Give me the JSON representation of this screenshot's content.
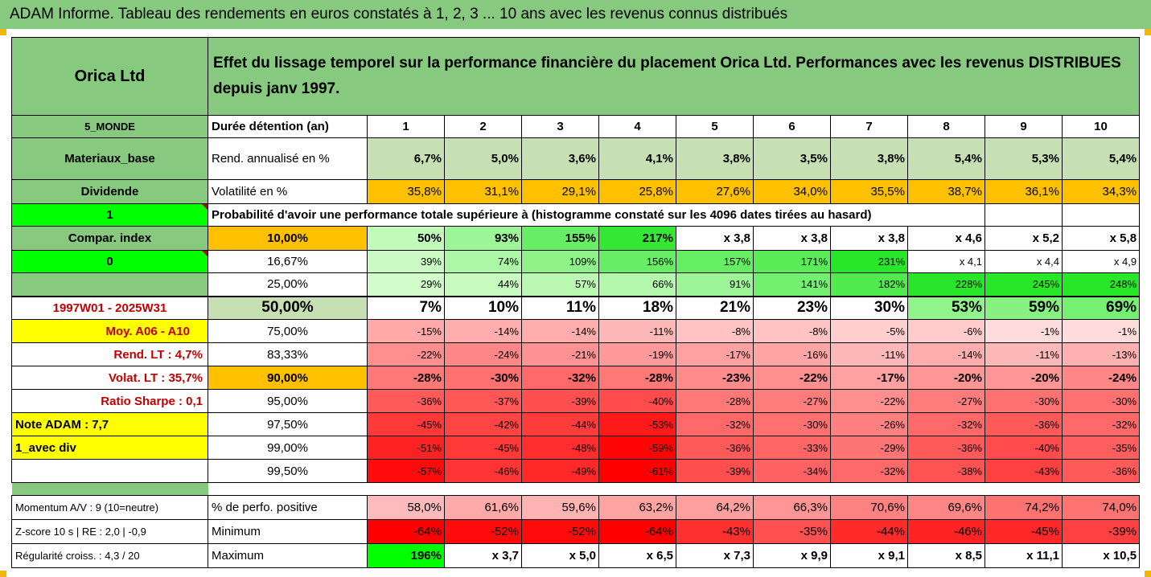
{
  "title": "ADAM Informe. Tableau des rendements en euros constatés à 1, 2, 3 ... 10 ans avec les revenus connus distribués",
  "company": "Orica Ltd",
  "header_text": "Effet du lissage temporel sur la performance financière du placement Orica Ltd. Performances avec les revenus DISTRIBUES depuis janv 1997.",
  "left_labels": {
    "region": "5_MONDE",
    "sector": "Materiaux_base",
    "dividend": "Dividende",
    "flag1": "1",
    "compar_index": "Compar. index",
    "flag0": "0",
    "period": "1997W01 - 2025W31",
    "moy": "Moy. A06 - A10",
    "rend_lt": "Rend. LT :    4,7%",
    "volat_lt": "Volat. LT :   35,7%",
    "sharpe": "Ratio Sharpe :   0,1",
    "note": "Note ADAM : 7,7",
    "avec_div": "1_avec div",
    "momentum": "Momentum A/V : 9 (10=neutre)",
    "zscore": "Z-score 10 s  | RE : 2,0 | -0,9",
    "regularite": "Régularité croiss. : 4,3 / 20"
  },
  "row_labels": {
    "duree": "Durée détention (an)",
    "rend": "Rend. annualisé en %",
    "vol": "Volatilité en %",
    "proba_header": "Probabilité d'avoir une performance totale supérieure à (histogramme constaté sur les 4096 dates tirées au hasard)",
    "perf_pos": "% de perfo. positive",
    "minimum": "Minimum",
    "maximum": "Maximum"
  },
  "years": [
    "1",
    "2",
    "3",
    "4",
    "5",
    "6",
    "7",
    "8",
    "9",
    "10"
  ],
  "rend": [
    "6,7%",
    "5,0%",
    "3,6%",
    "4,1%",
    "3,8%",
    "3,5%",
    "3,8%",
    "5,4%",
    "5,3%",
    "5,4%"
  ],
  "vol": [
    "35,8%",
    "31,1%",
    "29,1%",
    "25,8%",
    "27,6%",
    "34,0%",
    "35,5%",
    "38,7%",
    "36,1%",
    "34,3%"
  ],
  "prob_rows": [
    {
      "p": "10,00%",
      "v": [
        "50%",
        "93%",
        "155%",
        "217%",
        "x 3,8",
        "x 3,8",
        "x 3,8",
        "x 4,6",
        "x 5,2",
        "x 5,8"
      ]
    },
    {
      "p": "16,67%",
      "v": [
        "39%",
        "74%",
        "109%",
        "156%",
        "157%",
        "171%",
        "231%",
        "x 4,1",
        "x 4,4",
        "x 4,9"
      ]
    },
    {
      "p": "25,00%",
      "v": [
        "29%",
        "44%",
        "57%",
        "66%",
        "91%",
        "141%",
        "182%",
        "228%",
        "245%",
        "248%"
      ]
    },
    {
      "p": "50,00%",
      "v": [
        "7%",
        "10%",
        "11%",
        "18%",
        "21%",
        "23%",
        "30%",
        "53%",
        "59%",
        "69%"
      ]
    },
    {
      "p": "75,00%",
      "v": [
        "-15%",
        "-14%",
        "-14%",
        "-11%",
        "-8%",
        "-8%",
        "-5%",
        "-6%",
        "-1%",
        "-1%"
      ]
    },
    {
      "p": "83,33%",
      "v": [
        "-22%",
        "-24%",
        "-21%",
        "-19%",
        "-17%",
        "-16%",
        "-11%",
        "-14%",
        "-11%",
        "-13%"
      ]
    },
    {
      "p": "90,00%",
      "v": [
        "-28%",
        "-30%",
        "-32%",
        "-28%",
        "-23%",
        "-22%",
        "-17%",
        "-20%",
        "-20%",
        "-24%"
      ]
    },
    {
      "p": "95,00%",
      "v": [
        "-36%",
        "-37%",
        "-39%",
        "-40%",
        "-28%",
        "-27%",
        "-22%",
        "-27%",
        "-30%",
        "-30%"
      ]
    },
    {
      "p": "97,50%",
      "v": [
        "-45%",
        "-42%",
        "-44%",
        "-53%",
        "-32%",
        "-30%",
        "-26%",
        "-32%",
        "-36%",
        "-32%"
      ]
    },
    {
      "p": "99,00%",
      "v": [
        "-51%",
        "-45%",
        "-48%",
        "-59%",
        "-36%",
        "-33%",
        "-29%",
        "-36%",
        "-40%",
        "-35%"
      ]
    },
    {
      "p": "99,50%",
      "v": [
        "-57%",
        "-46%",
        "-49%",
        "-61%",
        "-39%",
        "-34%",
        "-32%",
        "-38%",
        "-43%",
        "-36%"
      ]
    }
  ],
  "perf_pos": [
    "58,0%",
    "61,6%",
    "59,6%",
    "63,2%",
    "64,2%",
    "66,3%",
    "70,6%",
    "69,6%",
    "74,2%",
    "74,0%"
  ],
  "minimum": [
    "-64%",
    "-52%",
    "-52%",
    "-64%",
    "-43%",
    "-35%",
    "-44%",
    "-46%",
    "-45%",
    "-39%"
  ],
  "maximum": [
    "196%",
    "x 3,7",
    "x 5,0",
    "x 6,5",
    "x 7,3",
    "x 9,9",
    "x 9,1",
    "x 8,5",
    "x 11,1",
    "x 10,5"
  ],
  "colors": {
    "label_green": "#87c97f",
    "rend_bg": "#c6e0b4",
    "vol_bg": "#ffc000",
    "bright_green": "#00ff00",
    "yellow": "#ffff00",
    "red": "#ff0000",
    "dark_red_text": "#c00000"
  }
}
